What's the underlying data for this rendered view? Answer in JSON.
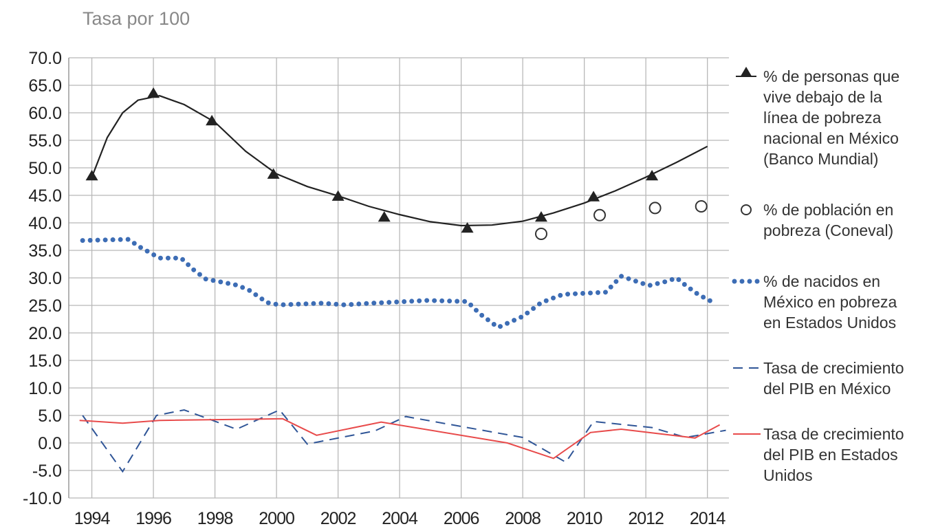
{
  "chart_data": {
    "type": "line",
    "title": "Tasa por 100",
    "xlim": [
      1993.25,
      2014.7
    ],
    "xticks": [
      1994,
      1996,
      1998,
      2000,
      2002,
      2004,
      2006,
      2008,
      2010,
      2012,
      2014
    ],
    "ylim": [
      -10,
      70
    ],
    "yticks": [
      {
        "value": -10,
        "label": "-10.0"
      },
      {
        "value": -5,
        "label": "-5.0"
      },
      {
        "value": 0,
        "label": "0.0"
      },
      {
        "value": 5,
        "label": "5.0"
      },
      {
        "value": 10,
        "label": "10.0"
      },
      {
        "value": 15,
        "label": "15.0"
      },
      {
        "value": 20,
        "label": "20.0"
      },
      {
        "value": 25,
        "label": "25.0"
      },
      {
        "value": 30,
        "label": "30.0"
      },
      {
        "value": 35,
        "label": "35.0"
      },
      {
        "value": 40,
        "label": "40.0"
      },
      {
        "value": 45,
        "label": "45.0"
      },
      {
        "value": 50,
        "label": "50.0"
      },
      {
        "value": 55,
        "label": "55.0"
      },
      {
        "value": 60,
        "label": "60.0"
      },
      {
        "value": 65,
        "label": "65.0"
      },
      {
        "value": 70,
        "label": "70.0"
      }
    ],
    "grid": true,
    "legend": "right",
    "series": [
      {
        "name": "% de personas que\nvive debajo de la\nlínea de pobreza\nnacional en México\n(Banco Mundial)",
        "color": "#222222",
        "style": "triangle",
        "x": [
          1994.0,
          1996.0,
          1997.9,
          1999.9,
          2002.0,
          2003.5,
          2006.2,
          2008.6,
          2010.3,
          2012.2
        ],
        "values": [
          48.5,
          63.5,
          58.5,
          48.8,
          44.8,
          41.0,
          39.0,
          41.0,
          44.7,
          48.5
        ],
        "trendline": {
          "x": [
            1994.0,
            1994.5,
            1995.0,
            1995.5,
            1996.2,
            1997.0,
            1998.0,
            1999.0,
            2000.0,
            2001.0,
            2002.0,
            2003.0,
            2004.0,
            2005.0,
            2006.0,
            2007.0,
            2008.0,
            2009.0,
            2010.0,
            2011.0,
            2012.0,
            2013.0,
            2014.0
          ],
          "values": [
            48.3,
            55.5,
            60.0,
            62.3,
            63.1,
            61.5,
            58.3,
            53.0,
            48.9,
            46.6,
            44.9,
            43.0,
            41.5,
            40.2,
            39.5,
            39.6,
            40.3,
            41.8,
            43.6,
            45.8,
            48.3,
            51.0,
            53.9
          ]
        }
      },
      {
        "name": "% de población en\npobreza (Coneval)",
        "color": "#333333",
        "style": "circle",
        "x": [
          2008.6,
          2010.5,
          2012.3,
          2013.8
        ],
        "values": [
          38.0,
          41.4,
          42.7,
          43.0
        ]
      },
      {
        "name": "% de nacidos en\nMéxico en pobreza\nen Estados Unidos",
        "color": "#3d6db5",
        "style": "dotted",
        "x": [
          1993.7,
          1995.2,
          1995.5,
          1996.2,
          1996.9,
          1997.3,
          1997.7,
          1998.7,
          1999.1,
          1999.7,
          2000.1,
          2001.5,
          2002.2,
          2003.1,
          2004.9,
          2006.2,
          2006.6,
          2007.2,
          2008.0,
          2008.6,
          2009.3,
          2010.7,
          2011.2,
          2012.1,
          2012.7,
          2013.0,
          2013.3,
          2013.7,
          2014.2
        ],
        "values": [
          36.8,
          37.0,
          35.8,
          33.6,
          33.6,
          31.5,
          29.8,
          28.7,
          27.8,
          25.5,
          25.1,
          25.4,
          25.1,
          25.4,
          25.9,
          25.7,
          23.5,
          21.0,
          23.0,
          25.5,
          27.0,
          27.4,
          30.3,
          28.6,
          29.4,
          30.0,
          28.6,
          27.0,
          25.5
        ]
      },
      {
        "name": "Tasa de crecimiento\ndel PIB en México",
        "color": "#2f5597",
        "style": "dashed",
        "x": [
          1993.7,
          1995.0,
          1996.1,
          1997.0,
          1998.7,
          2000.1,
          2001.0,
          2003.2,
          2004.2,
          2008.0,
          2009.4,
          2010.3,
          2012.2,
          2013.3,
          2014.6
        ],
        "values": [
          5.0,
          -5.2,
          5.0,
          6.0,
          2.5,
          6.0,
          -0.2,
          2.2,
          4.8,
          1.0,
          -3.5,
          3.9,
          2.8,
          1.0,
          2.3
        ]
      },
      {
        "name": "Tasa de crecimiento\ndel PIB en Estados\nUnidos",
        "color": "#e84a4a",
        "style": "solid",
        "x": [
          1993.6,
          1995.0,
          1996.2,
          2000.2,
          2001.3,
          2003.4,
          2007.5,
          2009.0,
          2010.2,
          2011.2,
          2013.6,
          2014.4
        ],
        "values": [
          4.1,
          3.6,
          4.1,
          4.4,
          1.4,
          3.8,
          0.0,
          -2.8,
          1.9,
          2.5,
          0.9,
          3.3
        ]
      }
    ]
  }
}
